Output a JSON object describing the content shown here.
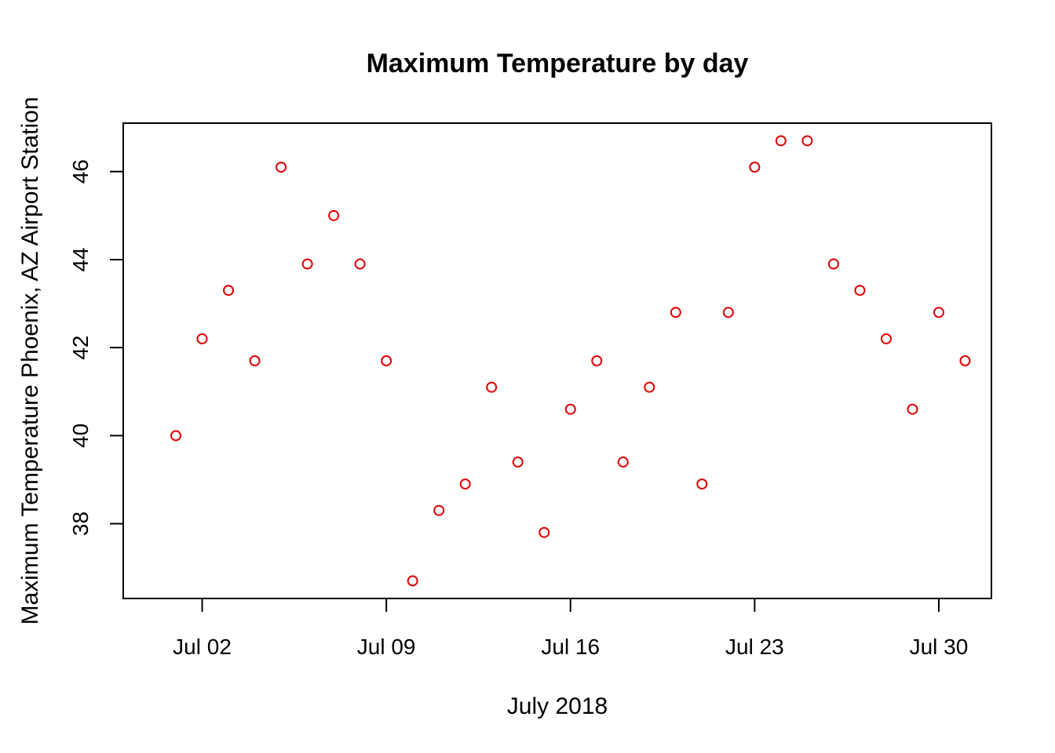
{
  "chart_data": {
    "type": "scatter",
    "title": "Maximum Temperature by day",
    "xlabel": "July 2018",
    "ylabel": "Maximum Temperature Phoenix, AZ Airport Station",
    "xlim": [
      "2018-06-29",
      "2018-08-01"
    ],
    "ylim": [
      36.3,
      47.1
    ],
    "x_ticks": [
      {
        "date": "2018-07-02",
        "label": "Jul 02"
      },
      {
        "date": "2018-07-09",
        "label": "Jul 09"
      },
      {
        "date": "2018-07-16",
        "label": "Jul 16"
      },
      {
        "date": "2018-07-23",
        "label": "Jul 23"
      },
      {
        "date": "2018-07-30",
        "label": "Jul 30"
      }
    ],
    "y_ticks": [
      38,
      40,
      42,
      44,
      46
    ],
    "grid": false,
    "marker": "open-circle",
    "point_color": "#e00000",
    "series": [
      {
        "points": [
          {
            "x": "2018-07-01",
            "y": 40.0
          },
          {
            "x": "2018-07-02",
            "y": 42.2
          },
          {
            "x": "2018-07-03",
            "y": 43.3
          },
          {
            "x": "2018-07-04",
            "y": 41.7
          },
          {
            "x": "2018-07-05",
            "y": 46.1
          },
          {
            "x": "2018-07-06",
            "y": 43.9
          },
          {
            "x": "2018-07-07",
            "y": 45.0
          },
          {
            "x": "2018-07-08",
            "y": 43.9
          },
          {
            "x": "2018-07-09",
            "y": 41.7
          },
          {
            "x": "2018-07-10",
            "y": 36.7
          },
          {
            "x": "2018-07-11",
            "y": 38.3
          },
          {
            "x": "2018-07-12",
            "y": 38.9
          },
          {
            "x": "2018-07-13",
            "y": 41.1
          },
          {
            "x": "2018-07-14",
            "y": 39.4
          },
          {
            "x": "2018-07-15",
            "y": 37.8
          },
          {
            "x": "2018-07-16",
            "y": 40.6
          },
          {
            "x": "2018-07-17",
            "y": 41.7
          },
          {
            "x": "2018-07-18",
            "y": 39.4
          },
          {
            "x": "2018-07-19",
            "y": 41.1
          },
          {
            "x": "2018-07-20",
            "y": 42.8
          },
          {
            "x": "2018-07-21",
            "y": 38.9
          },
          {
            "x": "2018-07-22",
            "y": 42.8
          },
          {
            "x": "2018-07-23",
            "y": 46.1
          },
          {
            "x": "2018-07-24",
            "y": 46.7
          },
          {
            "x": "2018-07-25",
            "y": 46.7
          },
          {
            "x": "2018-07-26",
            "y": 43.9
          },
          {
            "x": "2018-07-27",
            "y": 43.3
          },
          {
            "x": "2018-07-28",
            "y": 42.2
          },
          {
            "x": "2018-07-29",
            "y": 40.6
          },
          {
            "x": "2018-07-30",
            "y": 42.8
          },
          {
            "x": "2018-07-31",
            "y": 41.7
          }
        ]
      }
    ]
  }
}
